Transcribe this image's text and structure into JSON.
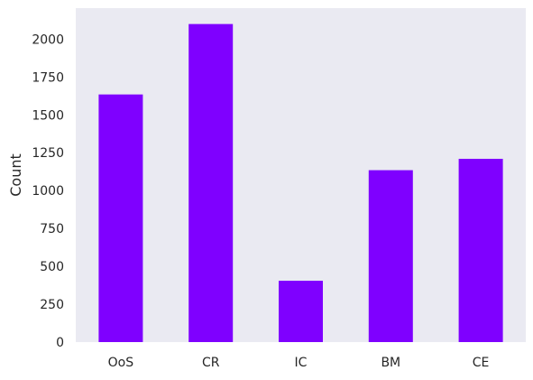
{
  "chart_data": {
    "type": "bar",
    "title": "",
    "xlabel": "",
    "ylabel": "Count",
    "categories": [
      "OoS",
      "CR",
      "IC",
      "BM",
      "CE"
    ],
    "values": [
      1635,
      2100,
      405,
      1135,
      1210
    ],
    "ylim": [
      0,
      2205
    ],
    "yticks": [
      0,
      250,
      500,
      750,
      1000,
      1250,
      1500,
      1750,
      2000
    ],
    "ytick_labels": [
      "0",
      "250",
      "500",
      "750",
      "1000",
      "1250",
      "1500",
      "1750",
      "2000"
    ],
    "grid": false,
    "legend": "none",
    "colors": {
      "bar": "#7f00ff",
      "plot_background": "#eaeaf2",
      "page_background": "#ffffff",
      "text": "#262626"
    }
  }
}
